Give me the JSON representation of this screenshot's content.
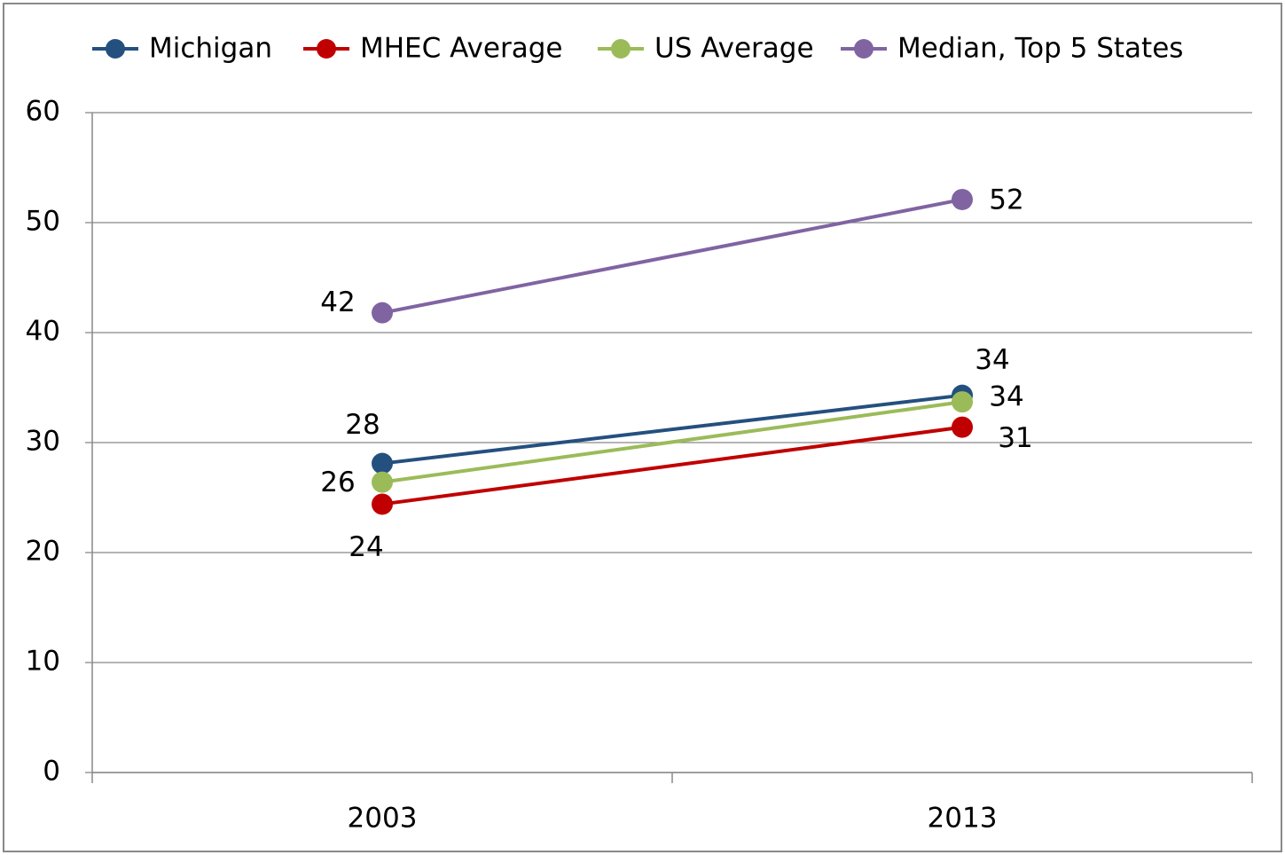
{
  "chart_data": {
    "type": "line",
    "categories": [
      "2003",
      "2013"
    ],
    "series": [
      {
        "name": "Michigan",
        "color": "#24507f",
        "values": [
          28.1,
          34.3
        ],
        "value_labels": [
          "28",
          "34"
        ]
      },
      {
        "name": "MHEC Average",
        "color": "#c00000",
        "values": [
          24.4,
          31.4
        ],
        "value_labels": [
          "24",
          "31"
        ]
      },
      {
        "name": "US Average",
        "color": "#9bbb59",
        "values": [
          26.4,
          33.7
        ],
        "value_labels": [
          "26",
          "34"
        ]
      },
      {
        "name": "Median, Top 5 States",
        "color": "#8064a2",
        "values": [
          41.8,
          52.1
        ],
        "value_labels": [
          "42",
          "52"
        ]
      }
    ],
    "ylim": [
      0,
      60
    ],
    "yticks": [
      0,
      10,
      20,
      30,
      40,
      50,
      60
    ],
    "grid": true,
    "legend": "top"
  }
}
